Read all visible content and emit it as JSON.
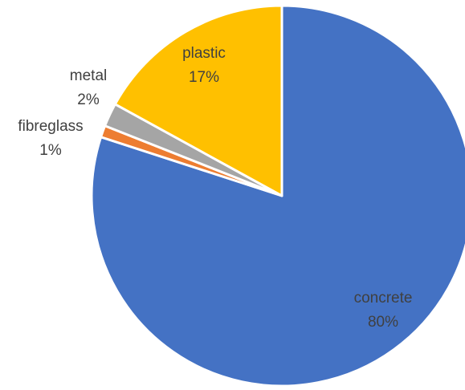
{
  "chart_data": {
    "type": "pie",
    "title": "",
    "start_angle_deg": 0,
    "direction": "clockwise",
    "slices": [
      {
        "label": "concrete",
        "value": 80,
        "value_label": "80%",
        "color": "#4472C4"
      },
      {
        "label": "fibreglass",
        "value": 1,
        "value_label": "1%",
        "color": "#ED7D31"
      },
      {
        "label": "metal",
        "value": 2,
        "value_label": "2%",
        "color": "#A5A5A5"
      },
      {
        "label": "plastic",
        "value": 17,
        "value_label": "17%",
        "color": "#FFC000"
      }
    ],
    "legend": "none",
    "label_style": "category name and percentage"
  }
}
